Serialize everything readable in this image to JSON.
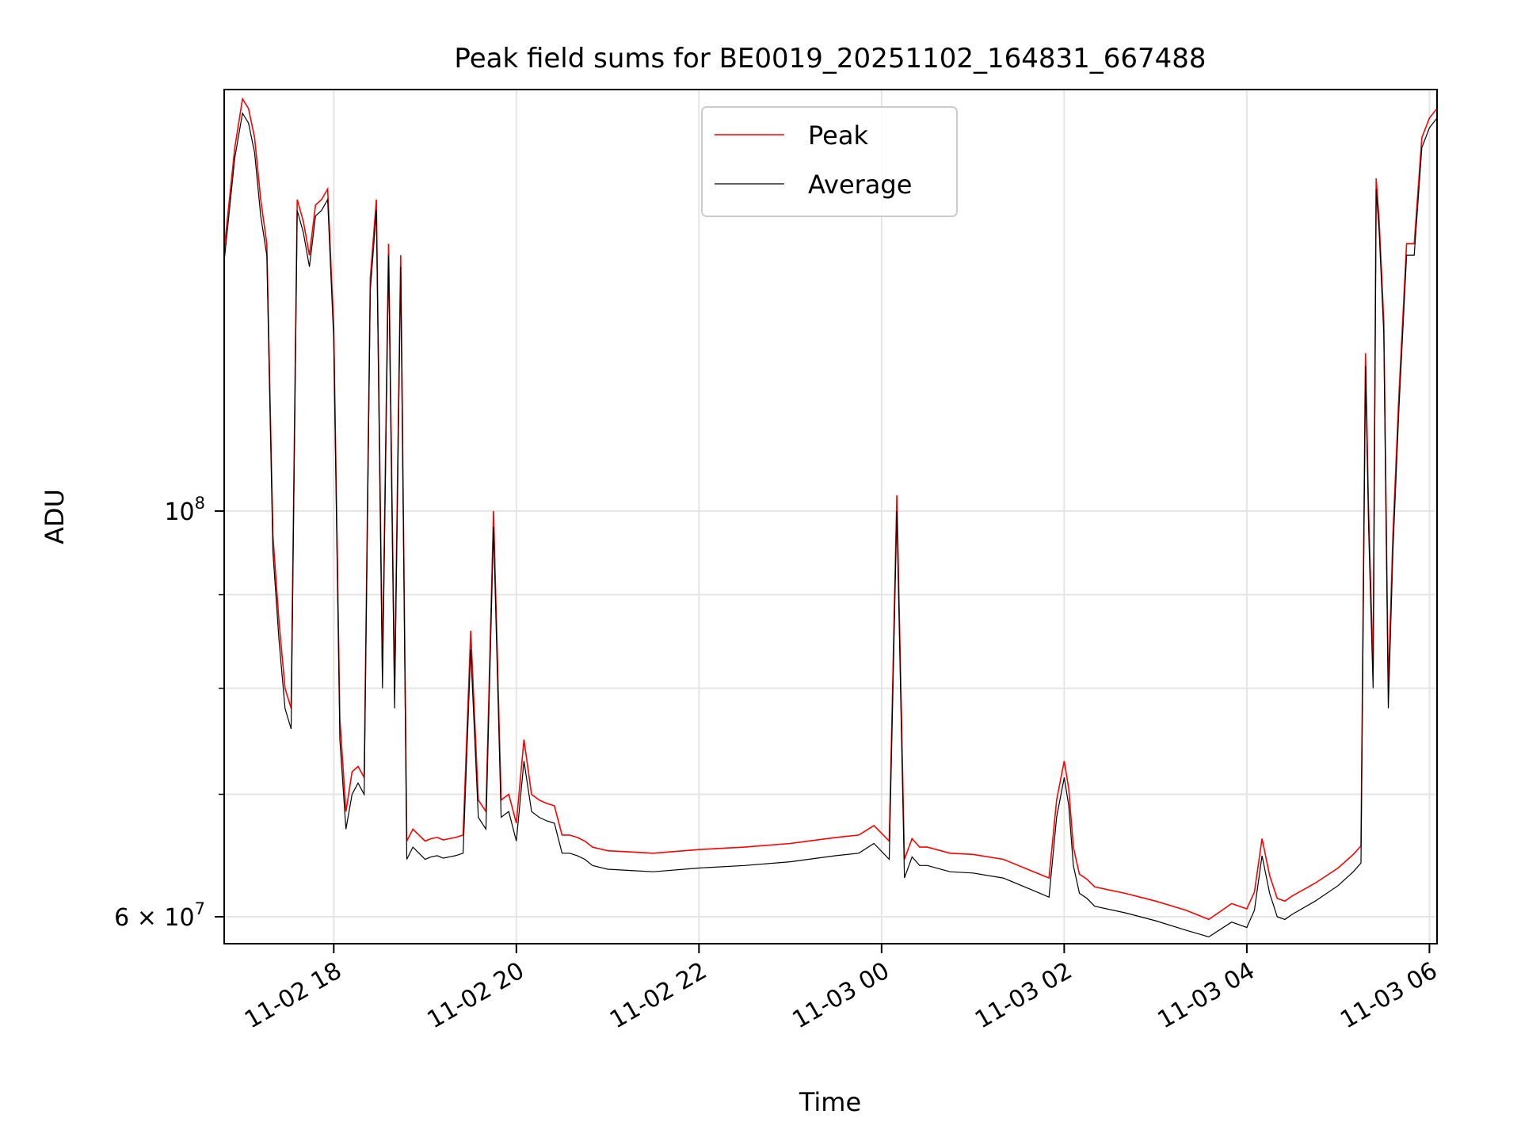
{
  "chart_data": {
    "type": "line",
    "title": "Peak field sums for BE0019_20251102_164831_667488",
    "xlabel": "Time",
    "ylabel": "ADU",
    "yscale": "log",
    "xlim": [
      "2025-11-02T16:48",
      "2025-11-03T06:05"
    ],
    "ylim": [
      58000000,
      170000000
    ],
    "grid": true,
    "legend_position": "upper center",
    "x_ticks": [
      {
        "t": "2025-11-02T18:00",
        "label": "11-02 18"
      },
      {
        "t": "2025-11-02T20:00",
        "label": "11-02 20"
      },
      {
        "t": "2025-11-02T22:00",
        "label": "11-02 22"
      },
      {
        "t": "2025-11-03T00:00",
        "label": "11-03 00"
      },
      {
        "t": "2025-11-03T02:00",
        "label": "11-03 02"
      },
      {
        "t": "2025-11-03T04:00",
        "label": "11-03 04"
      },
      {
        "t": "2025-11-03T06:00",
        "label": "11-03 06"
      }
    ],
    "y_ticks_major": [
      {
        "v": 60000000,
        "base": "6 × 10",
        "exp": "7"
      },
      {
        "v": 100000000,
        "base": "10",
        "exp": "8"
      }
    ],
    "y_ticks_minor": [
      70000000,
      80000000,
      90000000
    ],
    "series": [
      {
        "name": "Peak",
        "color": "#ff0000"
      },
      {
        "name": "Average",
        "color": "#000000"
      }
    ],
    "x": [
      "2025-11-02T16:48",
      "2025-11-02T16:55",
      "2025-11-02T17:00",
      "2025-11-02T17:04",
      "2025-11-02T17:08",
      "2025-11-02T17:12",
      "2025-11-02T17:16",
      "2025-11-02T17:20",
      "2025-11-02T17:24",
      "2025-11-02T17:28",
      "2025-11-02T17:32",
      "2025-11-02T17:36",
      "2025-11-02T17:40",
      "2025-11-02T17:44",
      "2025-11-02T17:48",
      "2025-11-02T17:52",
      "2025-11-02T17:56",
      "2025-11-02T18:00",
      "2025-11-02T18:04",
      "2025-11-02T18:08",
      "2025-11-02T18:12",
      "2025-11-02T18:16",
      "2025-11-02T18:20",
      "2025-11-02T18:24",
      "2025-11-02T18:28",
      "2025-11-02T18:32",
      "2025-11-02T18:36",
      "2025-11-02T18:40",
      "2025-11-02T18:44",
      "2025-11-02T18:48",
      "2025-11-02T18:52",
      "2025-11-02T18:56",
      "2025-11-02T19:00",
      "2025-11-02T19:04",
      "2025-11-02T19:08",
      "2025-11-02T19:12",
      "2025-11-02T19:16",
      "2025-11-02T19:20",
      "2025-11-02T19:25",
      "2025-11-02T19:30",
      "2025-11-02T19:35",
      "2025-11-02T19:40",
      "2025-11-02T19:45",
      "2025-11-02T19:50",
      "2025-11-02T19:55",
      "2025-11-02T20:00",
      "2025-11-02T20:05",
      "2025-11-02T20:10",
      "2025-11-02T20:15",
      "2025-11-02T20:20",
      "2025-11-02T20:25",
      "2025-11-02T20:30",
      "2025-11-02T20:35",
      "2025-11-02T20:40",
      "2025-11-02T20:45",
      "2025-11-02T20:50",
      "2025-11-02T21:00",
      "2025-11-02T21:15",
      "2025-11-02T21:30",
      "2025-11-02T22:00",
      "2025-11-02T22:30",
      "2025-11-02T23:00",
      "2025-11-02T23:30",
      "2025-11-02T23:45",
      "2025-11-02T23:55",
      "2025-11-03T00:05",
      "2025-11-03T00:10",
      "2025-11-03T00:15",
      "2025-11-03T00:20",
      "2025-11-03T00:25",
      "2025-11-03T00:30",
      "2025-11-03T00:45",
      "2025-11-03T01:00",
      "2025-11-03T01:20",
      "2025-11-03T01:40",
      "2025-11-03T01:50",
      "2025-11-03T01:55",
      "2025-11-03T02:00",
      "2025-11-03T02:03",
      "2025-11-03T02:06",
      "2025-11-03T02:10",
      "2025-11-03T02:15",
      "2025-11-03T02:20",
      "2025-11-03T02:40",
      "2025-11-03T03:00",
      "2025-11-03T03:20",
      "2025-11-03T03:35",
      "2025-11-03T03:50",
      "2025-11-03T04:00",
      "2025-11-03T04:05",
      "2025-11-03T04:10",
      "2025-11-03T04:15",
      "2025-11-03T04:20",
      "2025-11-03T04:25",
      "2025-11-03T04:30",
      "2025-11-03T04:45",
      "2025-11-03T05:00",
      "2025-11-03T05:10",
      "2025-11-03T05:15",
      "2025-11-03T05:18",
      "2025-11-03T05:20",
      "2025-11-03T05:23",
      "2025-11-03T05:25",
      "2025-11-03T05:27",
      "2025-11-03T05:30",
      "2025-11-03T05:33",
      "2025-11-03T05:36",
      "2025-11-03T05:40",
      "2025-11-03T05:45",
      "2025-11-03T05:50",
      "2025-11-03T05:55",
      "2025-11-03T06:00",
      "2025-11-03T06:05"
    ],
    "average": [
      137000000,
      156000000,
      165000000,
      163000000,
      157000000,
      145000000,
      138000000,
      95000000,
      85000000,
      78000000,
      76000000,
      146000000,
      142000000,
      136000000,
      145000000,
      146000000,
      148000000,
      124000000,
      75000000,
      67000000,
      70000000,
      71000000,
      70000000,
      132000000,
      146000000,
      80000000,
      138000000,
      78000000,
      136000000,
      64500000,
      65500000,
      65000000,
      64500000,
      64700000,
      64800000,
      64600000,
      64700000,
      64800000,
      65000000,
      84000000,
      68000000,
      67000000,
      98000000,
      68000000,
      68500000,
      66000000,
      73000000,
      68500000,
      68000000,
      67700000,
      67500000,
      65000000,
      65000000,
      64800000,
      64500000,
      64000000,
      63700000,
      63600000,
      63500000,
      63800000,
      64000000,
      64300000,
      64800000,
      65000000,
      65800000,
      64500000,
      100000000,
      63000000,
      64700000,
      64000000,
      64000000,
      63500000,
      63400000,
      63000000,
      62000000,
      61500000,
      68000000,
      71500000,
      69000000,
      64000000,
      61800000,
      61400000,
      60800000,
      60300000,
      59700000,
      59000000,
      58500000,
      59600000,
      59200000,
      60500000,
      64800000,
      61800000,
      60000000,
      59800000,
      60200000,
      61200000,
      62400000,
      63500000,
      64200000,
      120000000,
      98000000,
      80000000,
      150000000,
      142000000,
      125000000,
      78000000,
      95000000,
      114000000,
      138000000,
      138000000,
      158000000,
      162000000,
      164000000
    ],
    "peak": [
      139000000,
      158000000,
      168000000,
      166000000,
      160000000,
      148000000,
      140000000,
      97000000,
      87000000,
      80000000,
      78000000,
      148000000,
      144000000,
      138000000,
      147000000,
      148000000,
      150000000,
      126000000,
      77000000,
      68500000,
      72000000,
      72500000,
      71500000,
      134000000,
      148000000,
      82000000,
      140000000,
      80000000,
      138000000,
      66000000,
      67000000,
      66500000,
      66000000,
      66200000,
      66300000,
      66100000,
      66200000,
      66300000,
      66500000,
      86000000,
      69500000,
      68500000,
      100000000,
      69500000,
      70000000,
      67500000,
      75000000,
      70000000,
      69500000,
      69200000,
      69000000,
      66500000,
      66500000,
      66300000,
      66000000,
      65500000,
      65200000,
      65100000,
      65000000,
      65300000,
      65500000,
      65800000,
      66300000,
      66500000,
      67300000,
      66000000,
      102000000,
      64500000,
      66200000,
      65500000,
      65500000,
      65000000,
      64900000,
      64500000,
      63500000,
      63000000,
      69500000,
      73000000,
      70500000,
      65500000,
      63300000,
      62900000,
      62300000,
      61800000,
      61200000,
      60500000,
      59800000,
      61000000,
      60600000,
      61900000,
      66200000,
      63200000,
      61400000,
      61200000,
      61600000,
      62600000,
      63800000,
      64900000,
      65600000,
      122000000,
      100000000,
      82000000,
      152000000,
      144000000,
      127000000,
      80000000,
      97000000,
      116000000,
      140000000,
      140000000,
      160000000,
      164000000,
      166000000
    ]
  }
}
